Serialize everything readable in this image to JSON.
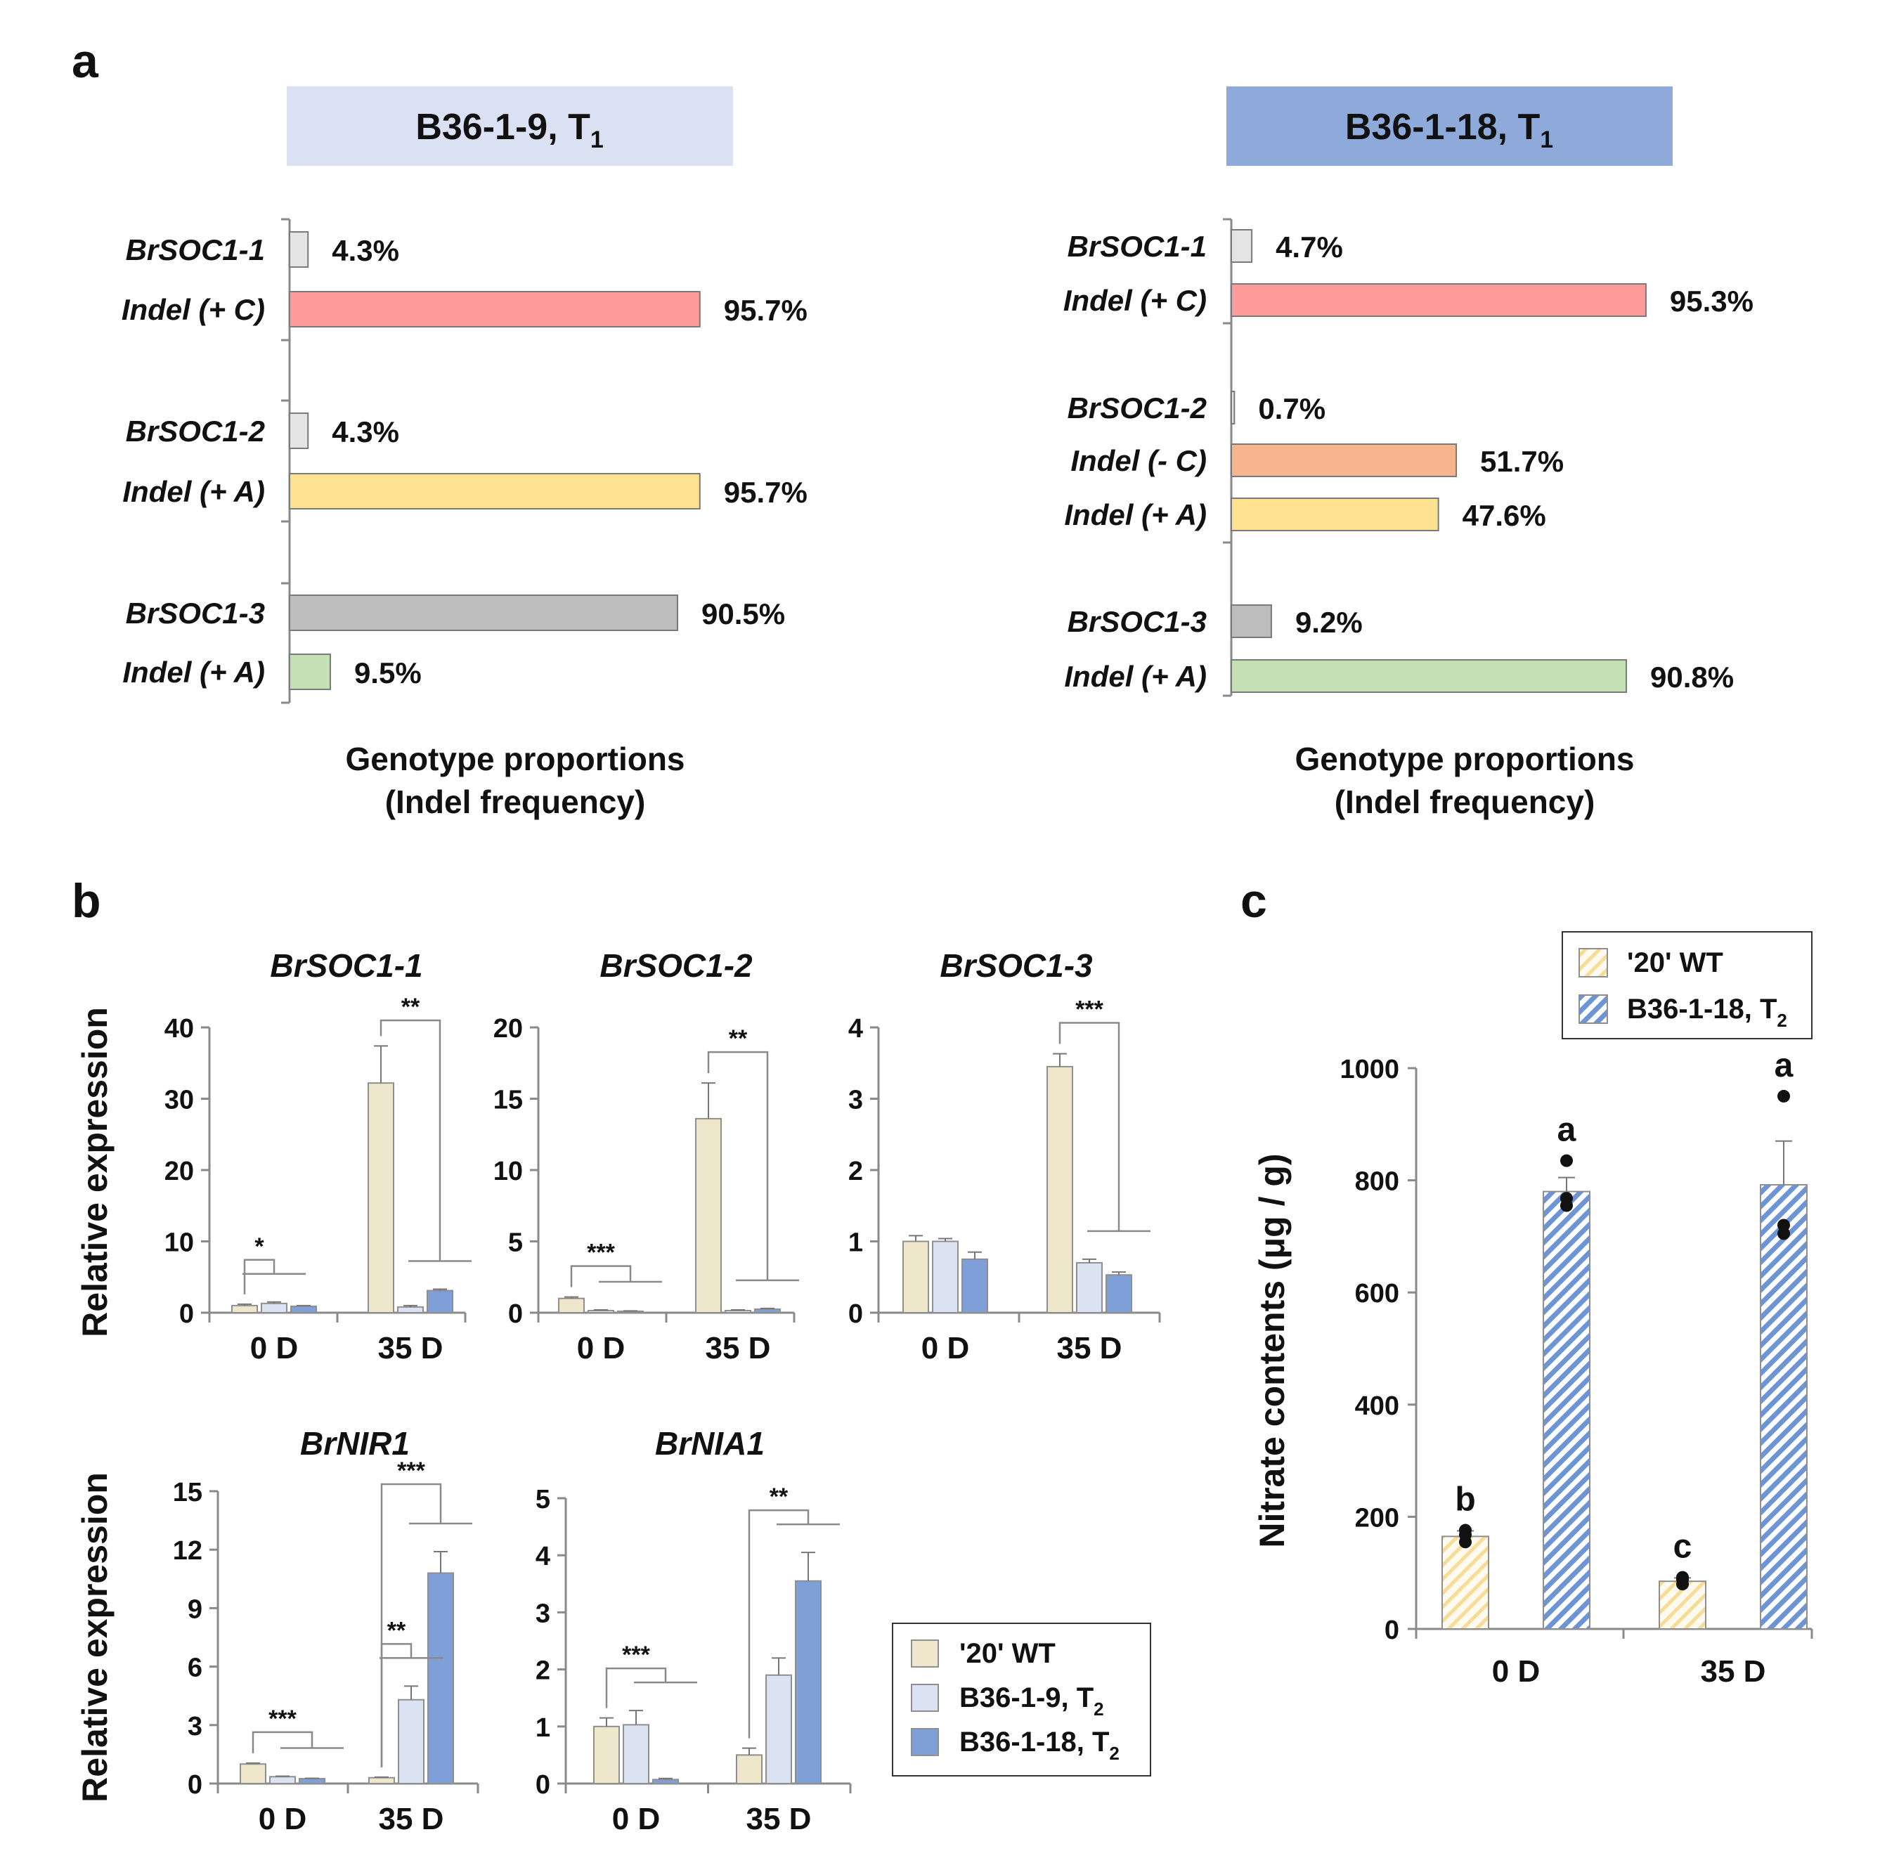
{
  "panel_labels": {
    "a": "a",
    "b": "b",
    "c": "c"
  },
  "colors": {
    "wt": "#efe7cc",
    "b9": "#dbe3f3",
    "b18": "#7f9fd8",
    "hdr9": "#d9e1f2",
    "hdr18": "#8eaadb",
    "wild_bar": "#e4e4e4",
    "indel_c": "#ff9b9b",
    "indel_c_minus": "#f7b58f",
    "indel_a": "#ffe28f",
    "indel_a3": "#c5e0b4",
    "soc3": "#bdbdbd",
    "c_wt": "#fbe9b4",
    "c_b18": "#6d95d6"
  },
  "chart_data": [
    {
      "id": "a-left",
      "type": "bar",
      "orientation": "horizontal",
      "header": {
        "main": "B36-1-9, T",
        "sub": "1"
      },
      "rows": [
        {
          "label": "BrSOC1-1",
          "value": 4.3,
          "text": "4.3%",
          "color": "wild_bar"
        },
        {
          "label": "Indel (+ C)",
          "value": 95.7,
          "text": "95.7%",
          "color": "indel_c"
        },
        {
          "label": "BrSOC1-2",
          "value": 4.3,
          "text": "4.3%",
          "color": "wild_bar"
        },
        {
          "label": "Indel (+ A)",
          "value": 95.7,
          "text": "95.7%",
          "color": "indel_a"
        },
        {
          "label": "BrSOC1-3",
          "value": 90.5,
          "text": "90.5%",
          "color": "soc3"
        },
        {
          "label": "Indel (+ A)",
          "value": 9.5,
          "text": "9.5%",
          "color": "indel_a3"
        }
      ],
      "xlabel_line1": "Genotype proportions",
      "xlabel_line2": "(Indel frequency)"
    },
    {
      "id": "a-right",
      "type": "bar",
      "orientation": "horizontal",
      "header": {
        "main": "B36-1-18, T",
        "sub": "1"
      },
      "rows": [
        {
          "label": "BrSOC1-1",
          "value": 4.7,
          "text": "4.7%",
          "color": "wild_bar"
        },
        {
          "label": "Indel (+ C)",
          "value": 95.3,
          "text": "95.3%",
          "color": "indel_c"
        },
        {
          "label": "BrSOC1-2",
          "value": 0.7,
          "text": "0.7%",
          "color": "wild_bar"
        },
        {
          "label": "Indel (- C)",
          "value": 51.7,
          "text": "51.7%",
          "color": "indel_c_minus"
        },
        {
          "label": "Indel (+ A)",
          "value": 47.6,
          "text": "47.6%",
          "color": "indel_a"
        },
        {
          "label": "BrSOC1-3",
          "value": 9.2,
          "text": "9.2%",
          "color": "soc3"
        },
        {
          "label": "Indel (+ A)",
          "value": 90.8,
          "text": "90.8%",
          "color": "indel_a3"
        }
      ],
      "xlabel_line1": "Genotype proportions",
      "xlabel_line2": "(Indel frequency)"
    },
    {
      "id": "b-soc1-1",
      "type": "bar",
      "title": "BrSOC1-1",
      "ylabel": "Relative expression",
      "ylim": [
        0,
        40
      ],
      "yticks": [
        0,
        10,
        20,
        30,
        40
      ],
      "categories": [
        "0 D",
        "35 D"
      ],
      "series": [
        {
          "name": "'20' WT",
          "values": [
            1.0,
            32.2
          ],
          "errors": [
            0.2,
            5.2
          ]
        },
        {
          "name": "B36-1-9, T2",
          "values": [
            1.3,
            0.8
          ],
          "errors": [
            0.2,
            0.2
          ]
        },
        {
          "name": "B36-1-18, T2",
          "values": [
            0.9,
            3.1
          ],
          "errors": [
            0.1,
            0.2
          ]
        }
      ],
      "annotations": [
        {
          "text": "*",
          "category": 0,
          "from": 0,
          "to": 1
        },
        {
          "text": "**",
          "category": 1,
          "from": 0,
          "to": 2
        }
      ]
    },
    {
      "id": "b-soc1-2",
      "type": "bar",
      "title": "BrSOC1-2",
      "ylabel": "",
      "ylim": [
        0,
        20
      ],
      "yticks": [
        0,
        5,
        10,
        15,
        20
      ],
      "categories": [
        "0 D",
        "35 D"
      ],
      "series": [
        {
          "name": "'20' WT",
          "values": [
            1.0,
            13.6
          ],
          "errors": [
            0.1,
            2.5
          ]
        },
        {
          "name": "B36-1-9, T2",
          "values": [
            0.15,
            0.15
          ],
          "errors": [
            0.05,
            0.05
          ]
        },
        {
          "name": "B36-1-18, T2",
          "values": [
            0.1,
            0.25
          ],
          "errors": [
            0.03,
            0.05
          ]
        }
      ],
      "annotations": [
        {
          "text": "***",
          "category": 0,
          "from": 0,
          "to": 2
        },
        {
          "text": "**",
          "category": 1,
          "from": 0,
          "to": 2
        }
      ]
    },
    {
      "id": "b-soc1-3",
      "type": "bar",
      "title": "BrSOC1-3",
      "ylabel": "",
      "ylim": [
        0,
        4
      ],
      "yticks": [
        0,
        1,
        2,
        3,
        4
      ],
      "categories": [
        "0 D",
        "35 D"
      ],
      "series": [
        {
          "name": "'20' WT",
          "values": [
            1.0,
            3.45
          ],
          "errors": [
            0.08,
            0.18
          ]
        },
        {
          "name": "B36-1-9, T2",
          "values": [
            1.0,
            0.7
          ],
          "errors": [
            0.04,
            0.05
          ]
        },
        {
          "name": "B36-1-18, T2",
          "values": [
            0.75,
            0.53
          ],
          "errors": [
            0.1,
            0.04
          ]
        }
      ],
      "annotations": [
        {
          "text": "***",
          "category": 1,
          "from": 0,
          "to": 2
        }
      ]
    },
    {
      "id": "b-nir1",
      "type": "bar",
      "title": "BrNIR1",
      "ylabel": "Relative expression",
      "ylim": [
        0,
        15
      ],
      "yticks": [
        0,
        3,
        6,
        9,
        12,
        15
      ],
      "categories": [
        "0 D",
        "35 D"
      ],
      "series": [
        {
          "name": "'20' WT",
          "values": [
            1.0,
            0.3
          ],
          "errors": [
            0.05,
            0.03
          ]
        },
        {
          "name": "B36-1-9, T2",
          "values": [
            0.35,
            4.3
          ],
          "errors": [
            0.03,
            0.7
          ]
        },
        {
          "name": "B36-1-18, T2",
          "values": [
            0.25,
            10.8
          ],
          "errors": [
            0.02,
            1.1
          ]
        }
      ],
      "annotations": [
        {
          "text": "***",
          "category": 0,
          "from": 0,
          "to": 2
        },
        {
          "text": "**",
          "category": 1,
          "from": 0,
          "to": 1
        },
        {
          "text": "***",
          "category": 1,
          "from": 0,
          "to": 2
        }
      ]
    },
    {
      "id": "b-nia1",
      "type": "bar",
      "title": "BrNIA1",
      "ylabel": "",
      "ylim": [
        0,
        5
      ],
      "yticks": [
        0,
        1,
        2,
        3,
        4,
        5
      ],
      "categories": [
        "0 D",
        "35 D"
      ],
      "series": [
        {
          "name": "'20' WT",
          "values": [
            1.0,
            0.5
          ],
          "errors": [
            0.15,
            0.12
          ]
        },
        {
          "name": "B36-1-9, T2",
          "values": [
            1.03,
            1.9
          ],
          "errors": [
            0.25,
            0.3
          ]
        },
        {
          "name": "B36-1-18, T2",
          "values": [
            0.07,
            3.55
          ],
          "errors": [
            0.02,
            0.5
          ]
        }
      ],
      "annotations": [
        {
          "text": "***",
          "category": 0,
          "from": 0,
          "to": 2
        },
        {
          "text": "**",
          "category": 1,
          "from": 0,
          "to": 2
        }
      ]
    },
    {
      "id": "c-nitrate",
      "type": "bar",
      "ylabel": "Nitrate contents (μg / g)",
      "ylim": [
        0,
        1000
      ],
      "yticks": [
        0,
        200,
        400,
        600,
        800,
        1000
      ],
      "categories": [
        "0 D",
        "35 D"
      ],
      "series": [
        {
          "name": "'20' WT",
          "values": [
            165,
            85
          ],
          "errors": [
            10,
            6
          ],
          "letters": [
            "b",
            "c"
          ],
          "points": [
            [
              155,
              168,
              176
            ],
            [
              80,
              88,
              92
            ]
          ]
        },
        {
          "name": "B36-1-18, T2",
          "values": [
            780,
            792
          ],
          "errors": [
            25,
            78
          ],
          "letters": [
            "a",
            "a"
          ],
          "points": [
            [
              755,
              768,
              835
            ],
            [
              705,
              720,
              950
            ]
          ]
        }
      ]
    }
  ],
  "legend_b": [
    {
      "text": "'20' WT",
      "sub": "",
      "color": "wt"
    },
    {
      "text": "B36-1-9, T",
      "sub": "2",
      "color": "b9"
    },
    {
      "text": "B36-1-18, T",
      "sub": "2",
      "color": "b18"
    }
  ],
  "legend_c": [
    {
      "text": "'20' WT",
      "sub": "",
      "color": "c_wt"
    },
    {
      "text": "B36-1-18, T",
      "sub": "2",
      "color": "c_b18"
    }
  ]
}
